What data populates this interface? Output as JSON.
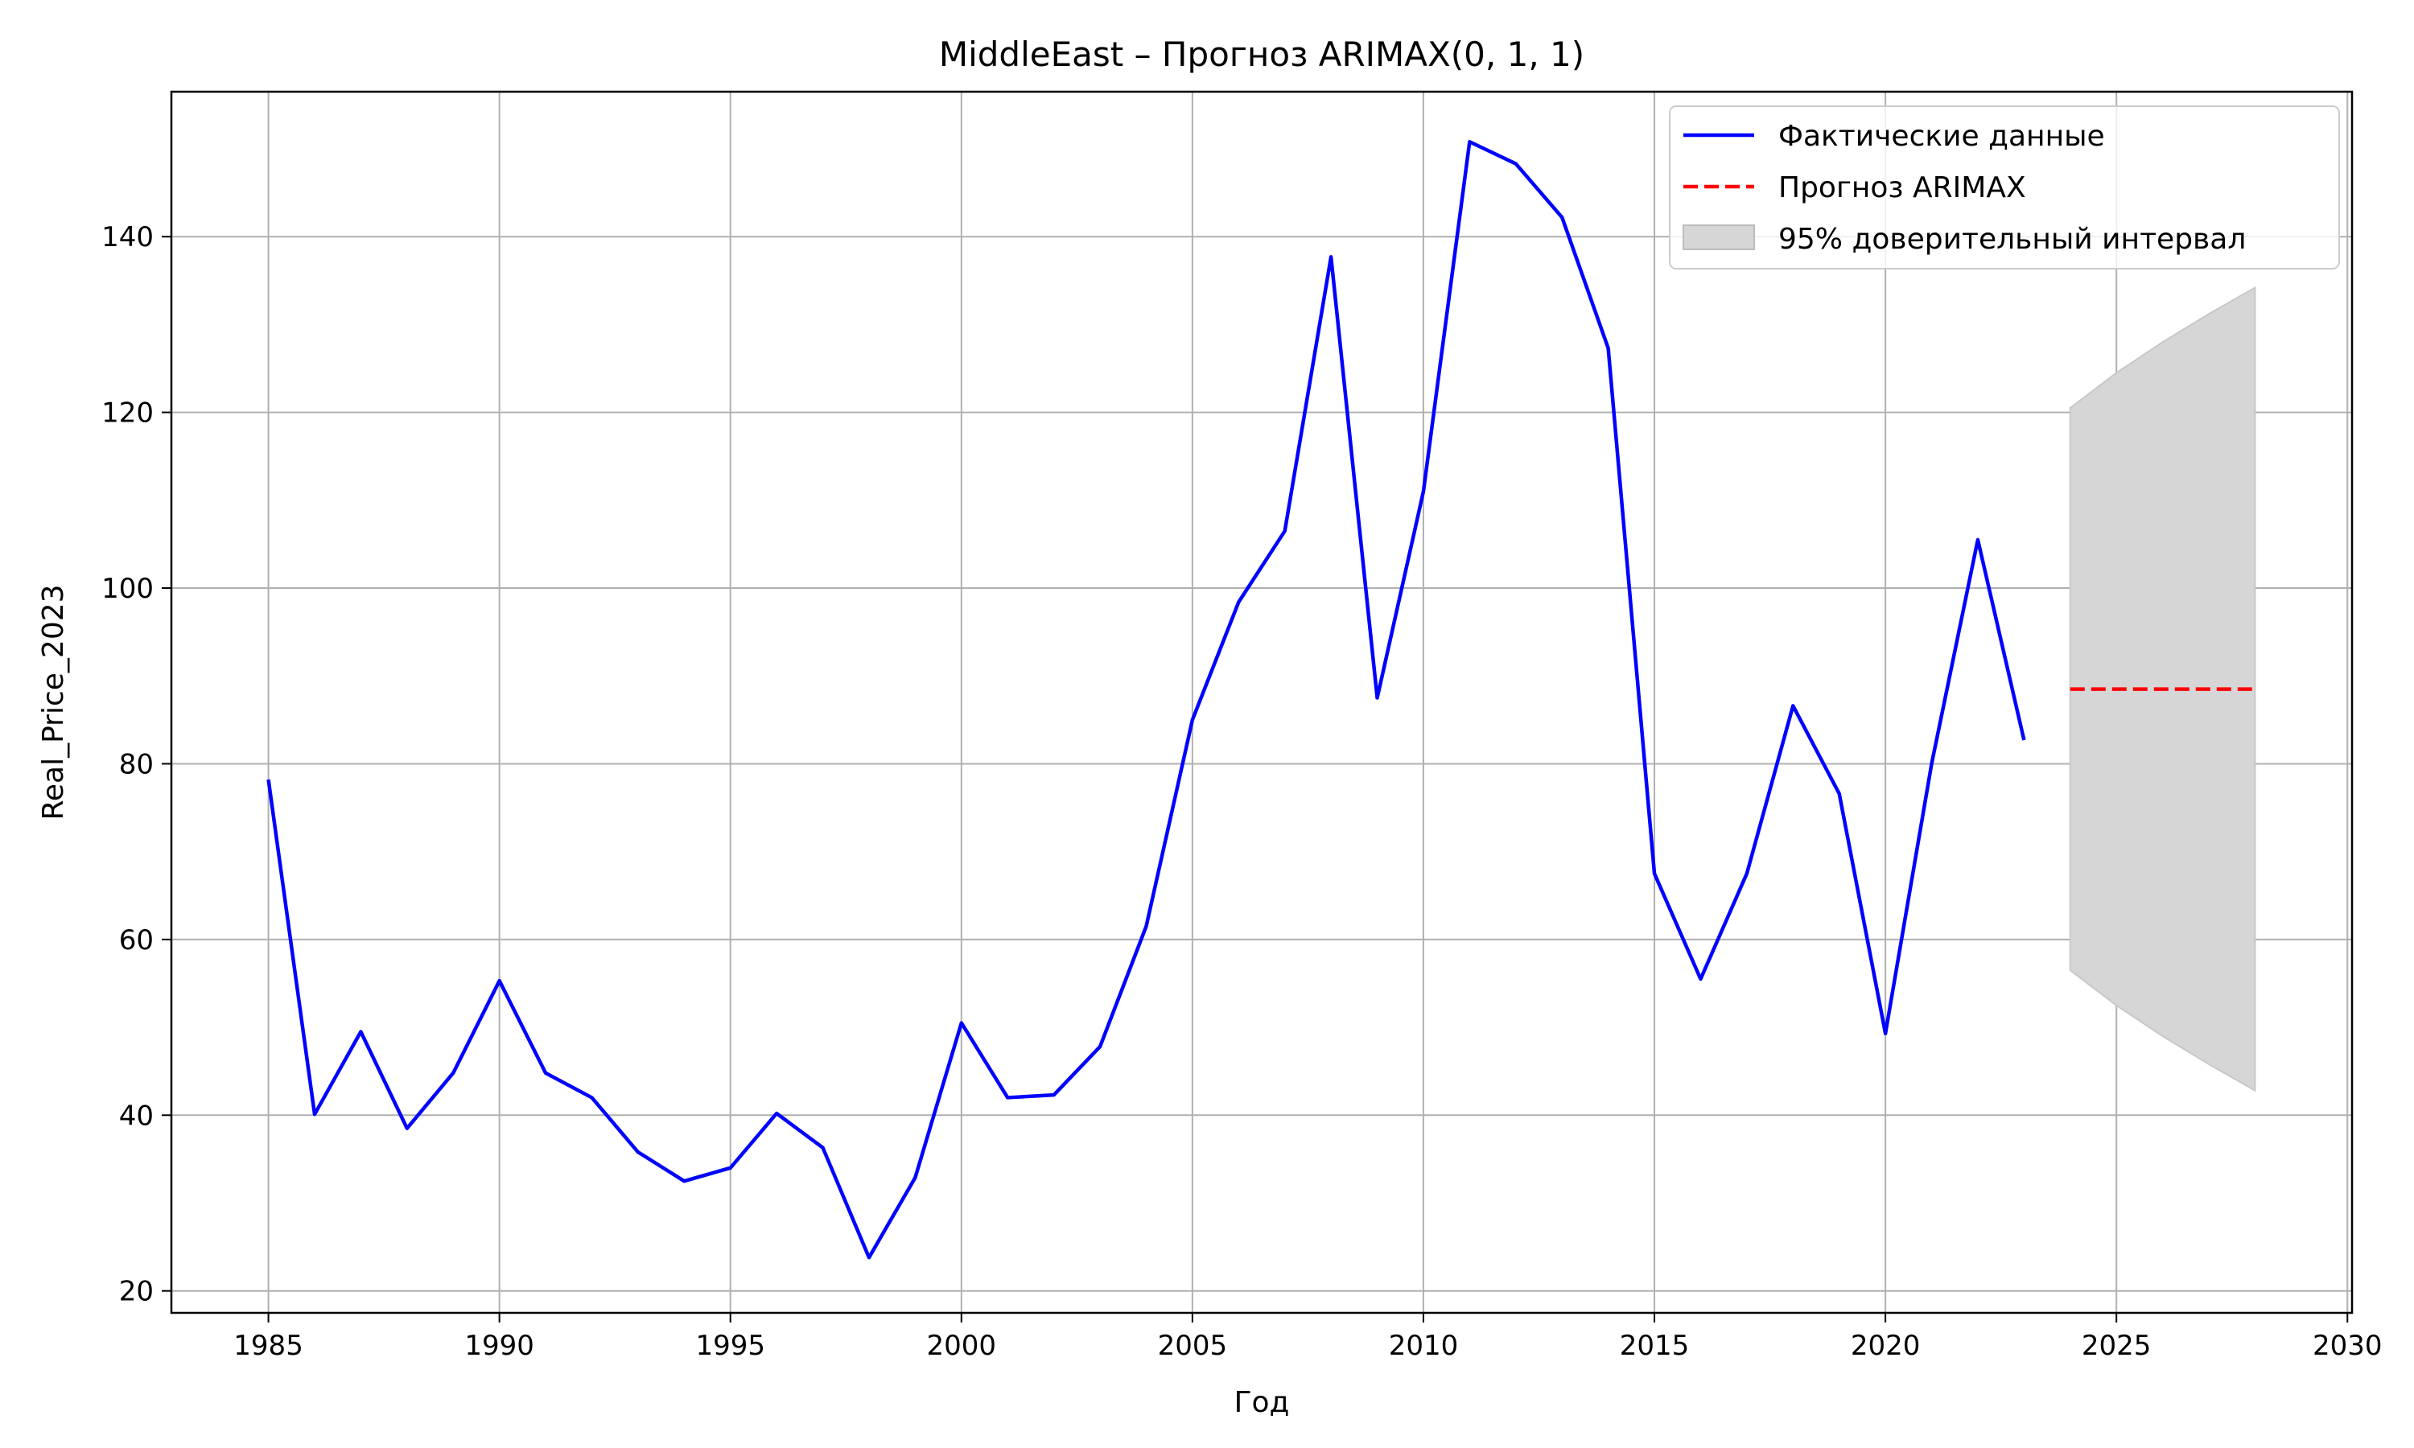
{
  "chart_data": {
    "type": "line",
    "title": "MiddleEast – Прогноз ARIMAX(0, 1, 1)",
    "xlabel": "Год",
    "ylabel": "Real_Price_2023",
    "xlim": [
      1982.9,
      2030.1
    ],
    "ylim": [
      17.5,
      156.5
    ],
    "x_ticks": [
      1985,
      1990,
      1995,
      2000,
      2005,
      2010,
      2015,
      2020,
      2025,
      2030
    ],
    "y_ticks": [
      20,
      40,
      60,
      80,
      100,
      120,
      140
    ],
    "grid": true,
    "legend_position": "top-right",
    "legend": [
      {
        "label": "Фактические данные",
        "style": "line",
        "color": "#0000ff"
      },
      {
        "label": "Прогноз ARIMAX",
        "style": "dashed",
        "color": "#ff0000"
      },
      {
        "label": "95% доверительный интервал",
        "style": "band",
        "color": "#d6d6d6"
      }
    ],
    "series": [
      {
        "name": "Фактические данные",
        "color": "#0000ff",
        "x": [
          1985,
          1986,
          1987,
          1988,
          1989,
          1990,
          1991,
          1992,
          1993,
          1994,
          1995,
          1996,
          1997,
          1998,
          1999,
          2000,
          2001,
          2002,
          2003,
          2004,
          2005,
          2006,
          2007,
          2008,
          2009,
          2010,
          2011,
          2012,
          2013,
          2014,
          2015,
          2016,
          2017,
          2018,
          2019,
          2020,
          2021,
          2022,
          2023
        ],
        "y": [
          78.2,
          40.1,
          49.5,
          38.5,
          44.8,
          55.3,
          44.8,
          42.0,
          35.8,
          32.5,
          34.0,
          40.2,
          36.3,
          23.8,
          32.9,
          50.5,
          42.0,
          42.3,
          47.8,
          61.5,
          85.0,
          98.4,
          106.5,
          137.7,
          87.5,
          111.0,
          150.8,
          148.3,
          142.2,
          127.3,
          67.5,
          55.5,
          67.5,
          86.6,
          76.6,
          49.3,
          80.0,
          105.5,
          82.7
        ]
      },
      {
        "name": "Прогноз ARIMAX",
        "color": "#ff0000",
        "dashed": true,
        "x": [
          2024,
          2025,
          2026,
          2027,
          2028
        ],
        "y": [
          88.5,
          88.5,
          88.5,
          88.5,
          88.5
        ]
      }
    ],
    "confidence_band": {
      "name": "95% доверительный интервал",
      "color": "#d6d6d6",
      "x": [
        2024,
        2025,
        2026,
        2027,
        2028
      ],
      "lower": [
        56.5,
        52.5,
        49.0,
        45.8,
        42.8
      ],
      "upper": [
        120.5,
        124.5,
        128.0,
        131.2,
        134.2
      ]
    }
  }
}
